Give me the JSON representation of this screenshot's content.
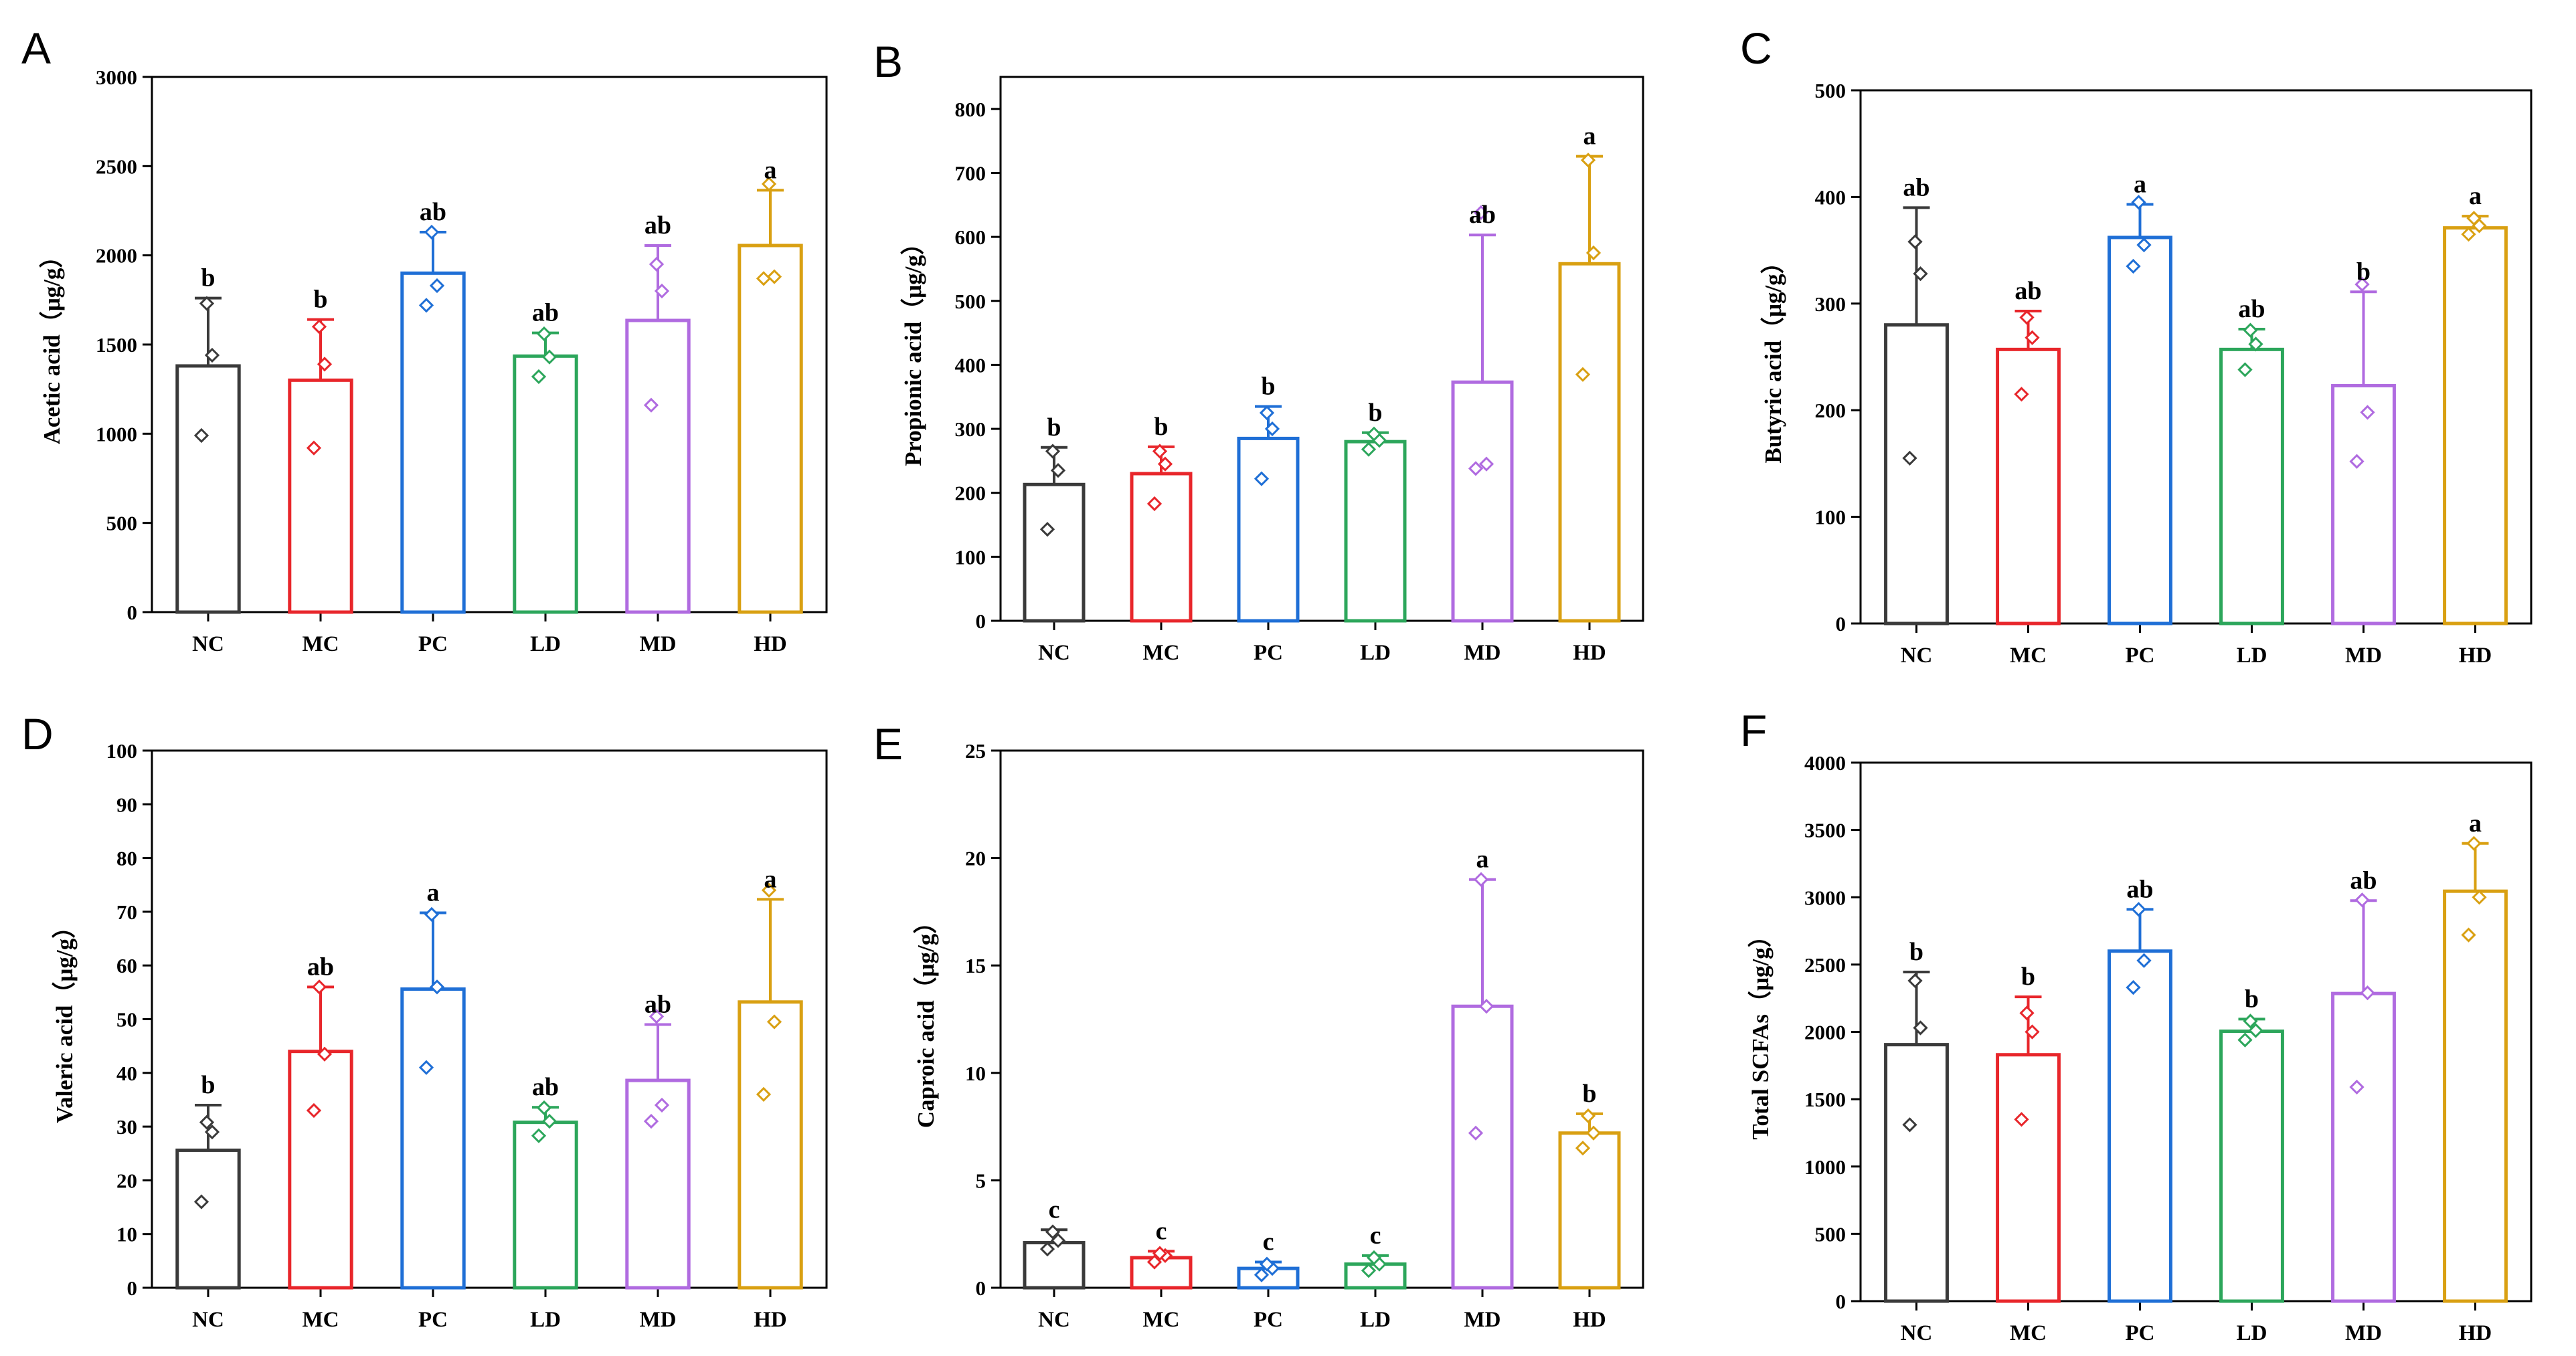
{
  "figure": {
    "unit_label": "（μg/g）",
    "colors": {
      "NC": "#3a3a3a",
      "MC": "#e8262b",
      "PC": "#1f6fd6",
      "LD": "#2ca65b",
      "MD": "#b06be0",
      "HD": "#d9a012"
    }
  },
  "chart_data": [
    {
      "panel": "A",
      "type": "bar",
      "ylabel": "Acetic acid",
      "ylim": [
        0,
        3000
      ],
      "yticks": [
        0,
        500,
        1000,
        1500,
        2000,
        2500,
        3000
      ],
      "categories": [
        "NC",
        "MC",
        "PC",
        "LD",
        "MD",
        "HD"
      ],
      "values": [
        1380,
        1300,
        1900,
        1435,
        1635,
        2055
      ],
      "errors": [
        380,
        340,
        230,
        130,
        420,
        310
      ],
      "points": [
        [
          990,
          1440,
          1730
        ],
        [
          920,
          1390,
          1600
        ],
        [
          1720,
          1830,
          2130
        ],
        [
          1320,
          1430,
          1560
        ],
        [
          1160,
          1800,
          1950
        ],
        [
          1870,
          1880,
          2400
        ]
      ],
      "significance": [
        "b",
        "b",
        "ab",
        "ab",
        "ab",
        "a"
      ]
    },
    {
      "panel": "B",
      "type": "bar",
      "ylabel": "Propionic acid",
      "ylim": [
        0,
        850
      ],
      "yticks": [
        0,
        100,
        200,
        300,
        400,
        500,
        600,
        700,
        800
      ],
      "categories": [
        "NC",
        "MC",
        "PC",
        "LD",
        "MD",
        "HD"
      ],
      "values": [
        213,
        230,
        285,
        280,
        373,
        558
      ],
      "errors": [
        58,
        42,
        50,
        14,
        230,
        168
      ],
      "points": [
        [
          143,
          235,
          265
        ],
        [
          183,
          245,
          265
        ],
        [
          222,
          300,
          325
        ],
        [
          268,
          282,
          292
        ],
        [
          238,
          245,
          638
        ],
        [
          385,
          575,
          720
        ]
      ],
      "significance": [
        "b",
        "b",
        "b",
        "b",
        "ab",
        "a"
      ]
    },
    {
      "panel": "C",
      "type": "bar",
      "ylabel": "Butyric acid",
      "ylim": [
        0,
        500
      ],
      "yticks": [
        0,
        100,
        200,
        300,
        400,
        500
      ],
      "categories": [
        "NC",
        "MC",
        "PC",
        "LD",
        "MD",
        "HD"
      ],
      "values": [
        280,
        257,
        362,
        257,
        223,
        371
      ],
      "errors": [
        110,
        36,
        31,
        19,
        88,
        11
      ],
      "points": [
        [
          155,
          328,
          358
        ],
        [
          215,
          268,
          287
        ],
        [
          335,
          355,
          395
        ],
        [
          238,
          262,
          275
        ],
        [
          152,
          198,
          318
        ],
        [
          365,
          373,
          380
        ]
      ],
      "significance": [
        "ab",
        "ab",
        "a",
        "ab",
        "b",
        "a"
      ]
    },
    {
      "panel": "D",
      "type": "bar",
      "ylabel": "Valeric acid",
      "ylim": [
        0,
        100
      ],
      "yticks": [
        0,
        10,
        20,
        30,
        40,
        50,
        60,
        70,
        80,
        90,
        100
      ],
      "categories": [
        "NC",
        "MC",
        "PC",
        "LD",
        "MD",
        "HD"
      ],
      "values": [
        25.6,
        44,
        55.6,
        30.8,
        38.6,
        53.2
      ],
      "errors": [
        8.4,
        12,
        14.2,
        2.8,
        10.4,
        19.1
      ],
      "points": [
        [
          16,
          29,
          30.8
        ],
        [
          33,
          43.5,
          56
        ],
        [
          41,
          56,
          69.5
        ],
        [
          28.3,
          31,
          33.5
        ],
        [
          31,
          34,
          50.5
        ],
        [
          36,
          49.5,
          74
        ]
      ],
      "significance": [
        "b",
        "ab",
        "a",
        "ab",
        "ab",
        "a"
      ]
    },
    {
      "panel": "E",
      "type": "bar",
      "ylabel": "Caproic acid",
      "ylim": [
        0,
        25
      ],
      "yticks": [
        0,
        5,
        10,
        15,
        20,
        25
      ],
      "categories": [
        "NC",
        "MC",
        "PC",
        "LD",
        "MD",
        "HD"
      ],
      "values": [
        2.1,
        1.4,
        0.9,
        1.1,
        13.1,
        7.2
      ],
      "errors": [
        0.6,
        0.3,
        0.3,
        0.4,
        5.9,
        0.9
      ],
      "points": [
        [
          1.8,
          2.2,
          2.6
        ],
        [
          1.2,
          1.5,
          1.6
        ],
        [
          0.6,
          0.9,
          1.1
        ],
        [
          0.8,
          1.1,
          1.4
        ],
        [
          7.2,
          13.1,
          19
        ],
        [
          6.5,
          7.2,
          8
        ]
      ],
      "significance": [
        "c",
        "c",
        "c",
        "c",
        "a",
        "b"
      ]
    },
    {
      "panel": "F",
      "type": "bar",
      "ylabel": "Total SCFAs",
      "ylim": [
        0,
        4000
      ],
      "yticks": [
        0,
        500,
        1000,
        1500,
        2000,
        2500,
        3000,
        3500,
        4000
      ],
      "categories": [
        "NC",
        "MC",
        "PC",
        "LD",
        "MD",
        "HD"
      ],
      "values": [
        1905,
        1830,
        2600,
        2005,
        2285,
        3045
      ],
      "errors": [
        540,
        430,
        310,
        90,
        690,
        355
      ],
      "points": [
        [
          1310,
          2030,
          2380
        ],
        [
          1350,
          2000,
          2140
        ],
        [
          2330,
          2530,
          2910
        ],
        [
          1940,
          2010,
          2080
        ],
        [
          1590,
          2290,
          2980
        ],
        [
          2720,
          3000,
          3400
        ]
      ],
      "significance": [
        "b",
        "b",
        "ab",
        "b",
        "ab",
        "a"
      ]
    }
  ]
}
